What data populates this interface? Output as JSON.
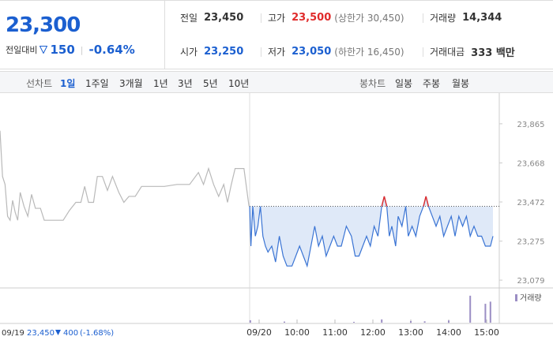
{
  "quote": {
    "price": "23,300",
    "change_label": "전일대비",
    "change": "150",
    "rate": "-0.64%"
  },
  "summary": [
    [
      {
        "label": "전일",
        "value": "23,450"
      },
      {
        "label": "고가",
        "value": "23,500",
        "note": "(상한가 30,450)"
      },
      {
        "label": "거래량",
        "value": "14,344"
      }
    ],
    [
      {
        "label": "시가",
        "value": "23,250"
      },
      {
        "label": "저가",
        "value": "23,050",
        "note": "(하한가 16,450)"
      },
      {
        "label": "거래대금",
        "value": "333 백만"
      }
    ]
  ],
  "tabs": {
    "line_label": "선차트",
    "line_periods": [
      "1일",
      "1주일",
      "3개월",
      "1년",
      "3년",
      "5년",
      "10년"
    ],
    "active": 0,
    "candle_label": "봉차트",
    "candle_periods": [
      "일봉",
      "주봉",
      "월봉"
    ]
  },
  "chart_data": {
    "type": "line",
    "reference": 23450,
    "xlim": [
      -410,
      380
    ],
    "ylim": [
      23020,
      23920
    ],
    "xticks": [
      {
        "value": 0,
        "label": "09/20"
      },
      {
        "value": 60,
        "label": "10:00"
      },
      {
        "value": 120,
        "label": "11:00"
      },
      {
        "value": 180,
        "label": "12:00"
      },
      {
        "value": 240,
        "label": "13:00"
      },
      {
        "value": 300,
        "label": "14:00"
      },
      {
        "value": 360,
        "label": "15:00"
      }
    ],
    "yticks": [
      {
        "value": 23865,
        "label": "23,865"
      },
      {
        "value": 23668,
        "label": "23,668"
      },
      {
        "value": 23472,
        "label": "23,472"
      },
      {
        "value": 23275,
        "label": "23,275"
      },
      {
        "value": 23079,
        "label": "23,079"
      }
    ],
    "above_color": "#e02b2b",
    "fill_color": "#dfe9f8",
    "series": [
      {
        "color": "#b9b9b9",
        "x": [
          -410,
          -406,
          -402,
          -398,
          -394,
          -390,
          -386,
          -382,
          -378,
          -372,
          -366,
          -360,
          -354,
          -346,
          -340,
          -320,
          -310,
          -300,
          -290,
          -282,
          -276,
          -270,
          -262,
          -256,
          -248,
          -240,
          -232,
          -222,
          -214,
          -206,
          -196,
          -186,
          -176,
          -166,
          -150,
          -130,
          -110,
          -96,
          -88,
          -80,
          -72,
          -64,
          -56,
          -50,
          -44,
          -38,
          -30,
          -24,
          -16
        ],
        "values": [
          23830,
          23600,
          23560,
          23400,
          23380,
          23480,
          23420,
          23380,
          23520,
          23450,
          23400,
          23510,
          23440,
          23440,
          23380,
          23380,
          23380,
          23430,
          23470,
          23470,
          23550,
          23470,
          23470,
          23600,
          23600,
          23530,
          23600,
          23520,
          23470,
          23500,
          23500,
          23550,
          23550,
          23550,
          23550,
          23560,
          23560,
          23620,
          23560,
          23640,
          23560,
          23500,
          23560,
          23470,
          23560,
          23640,
          23640,
          23640,
          23450
        ]
      },
      {
        "color": "#3a74d4",
        "fill": true,
        "x": [
          -15,
          -13,
          -10,
          -6,
          -2,
          2,
          6,
          10,
          14,
          20,
          26,
          32,
          38,
          44,
          52,
          58,
          64,
          70,
          76,
          82,
          88,
          94,
          100,
          106,
          112,
          118,
          124,
          130,
          138,
          146,
          152,
          158,
          164,
          170,
          176,
          182,
          188,
          194,
          198,
          202,
          206,
          210,
          216,
          220,
          226,
          232,
          236,
          242,
          248,
          254,
          260,
          264,
          268,
          274,
          280,
          286,
          292,
          298,
          304,
          310,
          316,
          322,
          328,
          334,
          340,
          346,
          352,
          358,
          366,
          370
        ],
        "values": [
          23450,
          23250,
          23450,
          23300,
          23350,
          23450,
          23300,
          23250,
          23220,
          23250,
          23170,
          23300,
          23200,
          23150,
          23150,
          23200,
          23250,
          23200,
          23150,
          23250,
          23350,
          23250,
          23300,
          23200,
          23250,
          23300,
          23250,
          23250,
          23350,
          23300,
          23200,
          23200,
          23250,
          23300,
          23250,
          23350,
          23300,
          23450,
          23500,
          23450,
          23300,
          23350,
          23250,
          23400,
          23350,
          23450,
          23300,
          23350,
          23300,
          23400,
          23450,
          23500,
          23450,
          23400,
          23350,
          23400,
          23300,
          23350,
          23400,
          23300,
          23400,
          23350,
          23400,
          23300,
          23350,
          23300,
          23300,
          23250,
          23250,
          23300
        ]
      }
    ],
    "volume": {
      "label": "거래량",
      "color": "#9b8ec4",
      "ylim": [
        0,
        1200
      ],
      "x": [
        -14,
        40,
        150,
        194,
        240,
        262,
        300,
        334,
        358,
        366
      ],
      "values": [
        90,
        40,
        30,
        120,
        60,
        50,
        80,
        1000,
        700,
        780
      ]
    }
  },
  "prev_day": {
    "date": "09/19",
    "price": "23,450",
    "change": "400",
    "rate": "(-1.68%)"
  }
}
